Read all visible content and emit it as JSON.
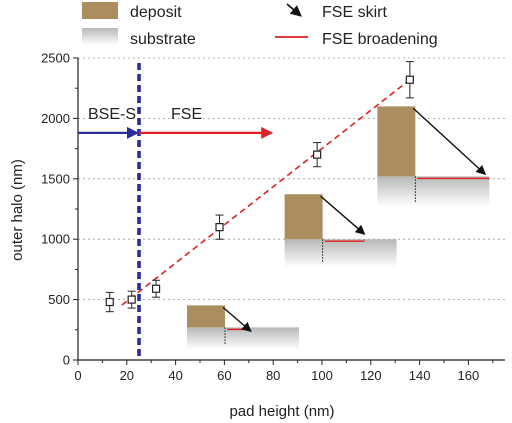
{
  "chart_data": {
    "type": "scatter",
    "title": "",
    "xlabel": "pad height (nm)",
    "ylabel": "outer halo (nm)",
    "xlim": [
      0,
      175
    ],
    "ylim": [
      0,
      2500
    ],
    "x_ticks": [
      0,
      20,
      40,
      60,
      80,
      100,
      120,
      140,
      160
    ],
    "y_ticks": [
      0,
      500,
      1000,
      1500,
      2000,
      2500
    ],
    "grid": "horizontal dotted",
    "series": [
      {
        "x": [
          13,
          22,
          32,
          58,
          98,
          136
        ],
        "y": [
          480,
          500,
          590,
          1100,
          1700,
          2320
        ],
        "yerr": [
          80,
          70,
          70,
          100,
          100,
          150
        ],
        "marker": "open-square"
      }
    ],
    "fit_line": {
      "x": [
        18,
        136
      ],
      "y": [
        455,
        2320
      ],
      "style": "dashed",
      "color": "#e02020"
    },
    "threshold": {
      "x": 25,
      "style": "thick-dashed",
      "color": "#2b2b9a"
    },
    "regions": [
      {
        "label": "BSE-S",
        "color": "#2b2b9a",
        "x_from": 0,
        "x_to": 25,
        "y": 1880
      },
      {
        "label": "FSE",
        "color": "#e02020",
        "x_from": 25,
        "x_to": 80,
        "y": 1880
      }
    ],
    "legend": [
      {
        "label": "deposit",
        "type": "swatch",
        "color": "#ab8d60"
      },
      {
        "label": "substrate",
        "type": "gradient"
      },
      {
        "label": "FSE skirt",
        "type": "arrow"
      },
      {
        "label": "FSE broadening",
        "type": "line",
        "color": "#e02020"
      }
    ],
    "legend_placement": "top",
    "insets": [
      {
        "x_data": 58,
        "y_data": 270,
        "depicts": "short pad"
      },
      {
        "x_data": 98,
        "y_data": 1000,
        "depicts": "medium pad"
      },
      {
        "x_data": 136,
        "y_data": 1520,
        "depicts": "tall pad"
      }
    ]
  },
  "colors": {
    "deposit": "#ab8d60",
    "substrate_top": "#b8b8b8",
    "substrate_bottom": "#ffffff",
    "fse": "#e02020",
    "bse": "#2b2b9a",
    "marker": "#222222"
  }
}
